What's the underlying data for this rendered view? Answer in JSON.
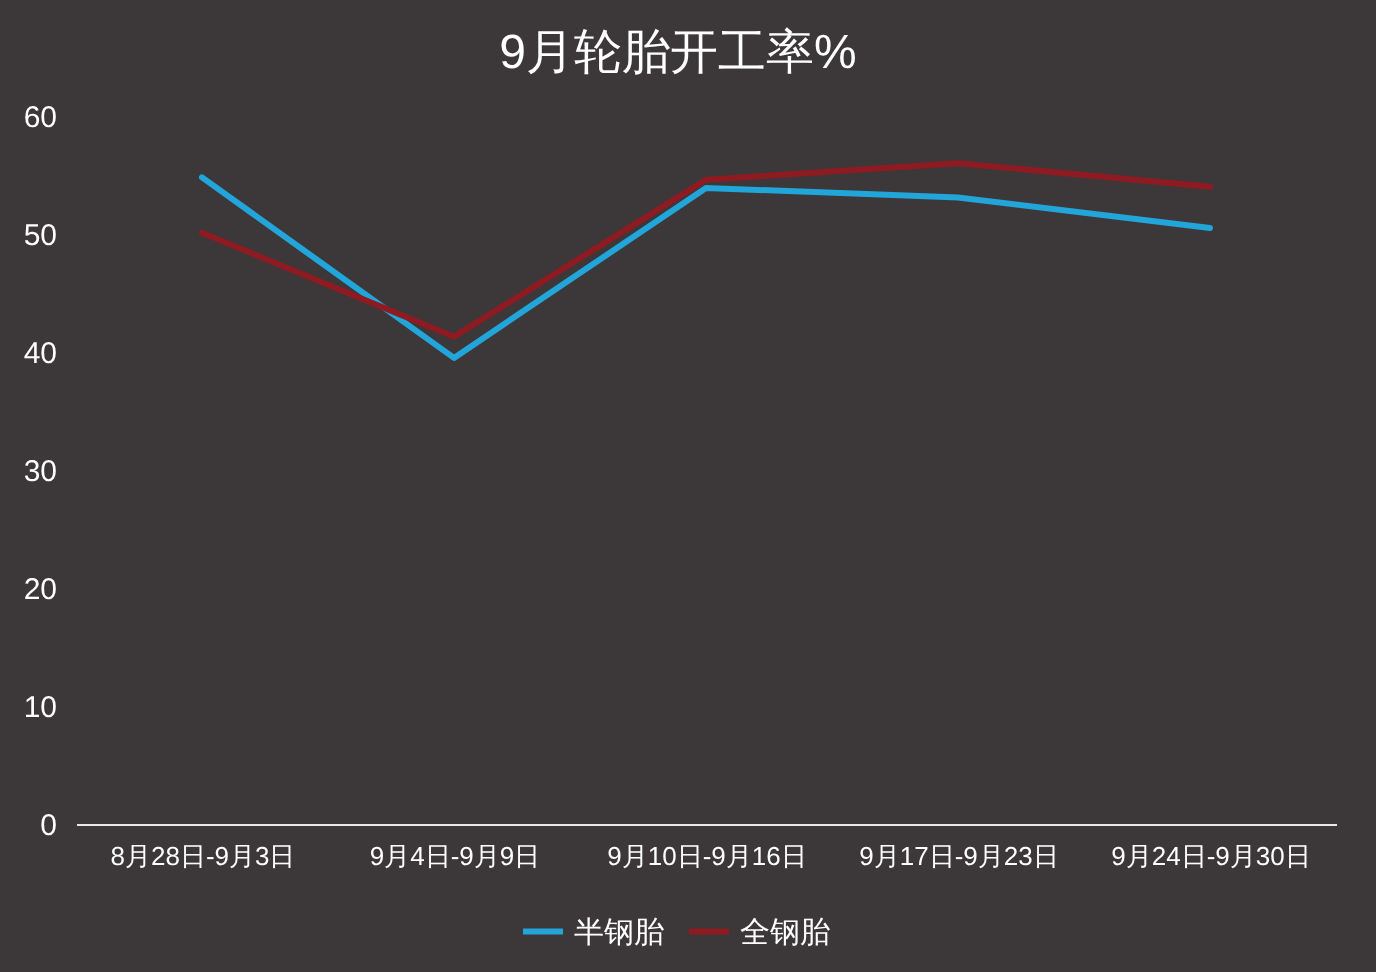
{
  "chart_data": {
    "type": "line",
    "title": "9月轮胎开工率%",
    "categories": [
      "8月28日-9月3日",
      "9月4日-9月9日",
      "9月10日-9月16日",
      "9月17日-9月23日",
      "9月24日-9月30日"
    ],
    "series": [
      {
        "name": "半钢胎",
        "color": "#22a5d8",
        "values": [
          54.8,
          39.5,
          53.9,
          53.1,
          50.5
        ]
      },
      {
        "name": "全钢胎",
        "color": "#8e1b22",
        "values": [
          50.1,
          41.3,
          54.6,
          56.0,
          54.0
        ]
      }
    ],
    "ylim": [
      0,
      60
    ],
    "yticks": [
      0,
      10,
      20,
      30,
      40,
      50,
      60
    ],
    "grid": false,
    "legend": "bottom",
    "marker": "none",
    "line_style": "solid"
  }
}
